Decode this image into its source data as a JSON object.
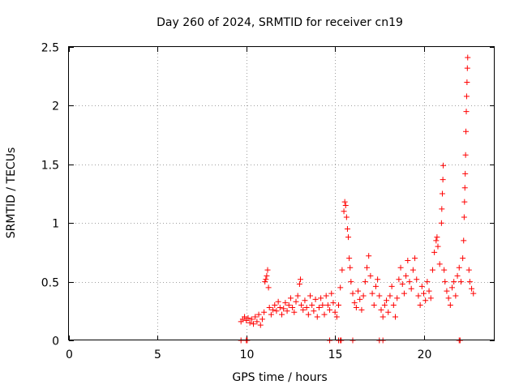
{
  "chart_data": {
    "type": "scatter",
    "title": "Day 260 of 2024, SRMTID for receiver cn19",
    "xlabel": "GPS time / hours",
    "ylabel": "SRMTID / TECUs",
    "xlim": [
      0,
      24
    ],
    "ylim": [
      0,
      2.5
    ],
    "x_ticks": [
      0,
      5,
      10,
      15,
      20
    ],
    "x_tick_labels": [
      "0",
      "5",
      "10",
      "15",
      "20"
    ],
    "y_ticks": [
      0,
      0.5,
      1,
      1.5,
      2,
      2.5
    ],
    "y_tick_labels": [
      "0",
      "0.5",
      "1",
      "1.5",
      "2",
      "2.5"
    ],
    "grid": true,
    "marker": "plus",
    "marker_color": "#ff0000",
    "series": [
      {
        "name": "SRMTID",
        "points": [
          [
            9.7,
            0.16
          ],
          [
            9.8,
            0.18
          ],
          [
            9.9,
            0.2
          ],
          [
            10.0,
            0.17
          ],
          [
            10.1,
            0.19
          ],
          [
            10.2,
            0.15
          ],
          [
            10.3,
            0.18
          ],
          [
            10.4,
            0.14
          ],
          [
            10.5,
            0.2
          ],
          [
            10.6,
            0.16
          ],
          [
            10.7,
            0.22
          ],
          [
            10.8,
            0.13
          ],
          [
            10.9,
            0.18
          ],
          [
            11.0,
            0.24
          ],
          [
            11.05,
            0.5
          ],
          [
            11.1,
            0.52
          ],
          [
            11.15,
            0.55
          ],
          [
            11.2,
            0.6
          ],
          [
            11.25,
            0.45
          ],
          [
            11.3,
            0.28
          ],
          [
            11.4,
            0.22
          ],
          [
            11.5,
            0.26
          ],
          [
            11.6,
            0.3
          ],
          [
            11.7,
            0.25
          ],
          [
            11.8,
            0.33
          ],
          [
            11.9,
            0.28
          ],
          [
            12.0,
            0.22
          ],
          [
            12.1,
            0.27
          ],
          [
            12.2,
            0.32
          ],
          [
            12.3,
            0.25
          ],
          [
            12.4,
            0.3
          ],
          [
            12.5,
            0.36
          ],
          [
            12.6,
            0.28
          ],
          [
            12.7,
            0.24
          ],
          [
            12.8,
            0.33
          ],
          [
            12.9,
            0.38
          ],
          [
            13.0,
            0.48
          ],
          [
            13.05,
            0.52
          ],
          [
            13.1,
            0.3
          ],
          [
            13.2,
            0.26
          ],
          [
            13.3,
            0.34
          ],
          [
            13.4,
            0.28
          ],
          [
            13.5,
            0.22
          ],
          [
            13.6,
            0.38
          ],
          [
            13.7,
            0.3
          ],
          [
            13.8,
            0.25
          ],
          [
            13.9,
            0.35
          ],
          [
            14.0,
            0.2
          ],
          [
            14.1,
            0.28
          ],
          [
            14.2,
            0.36
          ],
          [
            14.3,
            0.3
          ],
          [
            14.4,
            0.22
          ],
          [
            14.5,
            0.38
          ],
          [
            14.6,
            0.3
          ],
          [
            14.7,
            0.26
          ],
          [
            14.8,
            0.4
          ],
          [
            14.9,
            0.32
          ],
          [
            15.0,
            0.24
          ],
          [
            15.1,
            0.2
          ],
          [
            15.2,
            0.3
          ],
          [
            15.3,
            0.45
          ],
          [
            15.4,
            0.6
          ],
          [
            15.5,
            1.1
          ],
          [
            15.55,
            1.18
          ],
          [
            15.6,
            1.15
          ],
          [
            15.65,
            1.05
          ],
          [
            15.7,
            0.95
          ],
          [
            15.75,
            0.88
          ],
          [
            15.8,
            0.7
          ],
          [
            15.85,
            0.62
          ],
          [
            15.9,
            0.5
          ],
          [
            16.0,
            0.4
          ],
          [
            16.1,
            0.32
          ],
          [
            16.2,
            0.28
          ],
          [
            16.3,
            0.42
          ],
          [
            16.4,
            0.35
          ],
          [
            16.5,
            0.26
          ],
          [
            16.6,
            0.38
          ],
          [
            16.7,
            0.5
          ],
          [
            16.8,
            0.62
          ],
          [
            16.9,
            0.72
          ],
          [
            17.0,
            0.55
          ],
          [
            17.1,
            0.4
          ],
          [
            17.2,
            0.3
          ],
          [
            17.3,
            0.46
          ],
          [
            17.4,
            0.52
          ],
          [
            17.5,
            0.38
          ],
          [
            17.6,
            0.26
          ],
          [
            17.7,
            0.2
          ],
          [
            17.8,
            0.3
          ],
          [
            17.9,
            0.34
          ],
          [
            18.0,
            0.24
          ],
          [
            18.1,
            0.38
          ],
          [
            18.2,
            0.46
          ],
          [
            18.3,
            0.3
          ],
          [
            18.4,
            0.2
          ],
          [
            18.5,
            0.36
          ],
          [
            18.6,
            0.52
          ],
          [
            18.7,
            0.62
          ],
          [
            18.8,
            0.48
          ],
          [
            18.9,
            0.4
          ],
          [
            19.0,
            0.55
          ],
          [
            19.1,
            0.68
          ],
          [
            19.2,
            0.5
          ],
          [
            19.3,
            0.44
          ],
          [
            19.4,
            0.6
          ],
          [
            19.5,
            0.7
          ],
          [
            19.6,
            0.52
          ],
          [
            19.7,
            0.38
          ],
          [
            19.8,
            0.3
          ],
          [
            19.9,
            0.46
          ],
          [
            20.0,
            0.4
          ],
          [
            20.1,
            0.34
          ],
          [
            20.2,
            0.5
          ],
          [
            20.3,
            0.42
          ],
          [
            20.4,
            0.36
          ],
          [
            20.5,
            0.6
          ],
          [
            20.6,
            0.75
          ],
          [
            20.7,
            0.85
          ],
          [
            20.75,
            0.88
          ],
          [
            20.8,
            0.8
          ],
          [
            20.9,
            0.65
          ],
          [
            21.0,
            1.0
          ],
          [
            21.02,
            1.12
          ],
          [
            21.05,
            1.25
          ],
          [
            21.08,
            1.37
          ],
          [
            21.1,
            1.49
          ],
          [
            21.15,
            0.6
          ],
          [
            21.2,
            0.5
          ],
          [
            21.3,
            0.42
          ],
          [
            21.4,
            0.36
          ],
          [
            21.5,
            0.3
          ],
          [
            21.6,
            0.45
          ],
          [
            21.7,
            0.5
          ],
          [
            21.8,
            0.38
          ],
          [
            21.9,
            0.55
          ],
          [
            22.0,
            0.62
          ],
          [
            22.1,
            0.5
          ],
          [
            22.2,
            0.7
          ],
          [
            22.25,
            0.85
          ],
          [
            22.28,
            1.05
          ],
          [
            22.3,
            1.18
          ],
          [
            22.32,
            1.3
          ],
          [
            22.34,
            1.42
          ],
          [
            22.36,
            1.58
          ],
          [
            22.38,
            1.78
          ],
          [
            22.4,
            1.95
          ],
          [
            22.42,
            2.08
          ],
          [
            22.44,
            2.2
          ],
          [
            22.46,
            2.32
          ],
          [
            22.48,
            2.41
          ],
          [
            22.55,
            0.6
          ],
          [
            22.6,
            0.5
          ],
          [
            22.7,
            0.44
          ],
          [
            22.8,
            0.4
          ]
        ],
        "zero_points": [
          9.7,
          10.0,
          10.05,
          14.7,
          15.2,
          15.3,
          15.35,
          16.0,
          17.5,
          17.7,
          22.0,
          22.05
        ]
      }
    ]
  }
}
